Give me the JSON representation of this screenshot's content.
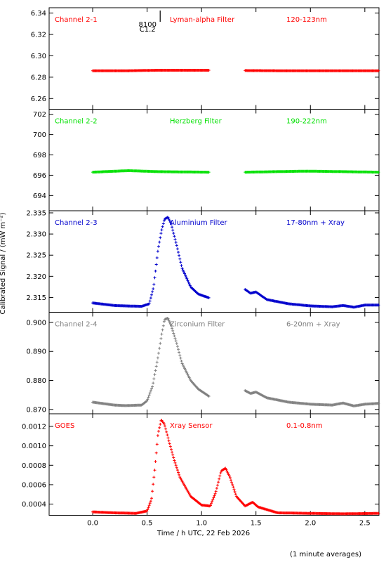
{
  "figure": {
    "xlabel": "Time / h UTC, 22 Feb 2026",
    "ylabel": "Calibrated Signal / (mW m⁻²)",
    "footnote": "(1 minute averages)",
    "flare_marker": {
      "x": 0.62,
      "label_top": "8100",
      "label_bottom": "C1.2"
    }
  },
  "chart_data": [
    {
      "type": "scatter",
      "label_left": "Channel 2-1",
      "label_mid": "Lyman-alpha Filter",
      "label_right": "120-123nm",
      "color": "#ff0000",
      "xlim": [
        -0.4,
        2.63
      ],
      "ylim": [
        6.25,
        6.345
      ],
      "yticks": [
        6.26,
        6.28,
        6.3,
        6.32,
        6.34
      ],
      "ytick_labels": [
        "6.26",
        "6.28",
        "6.30",
        "6.32",
        "6.34"
      ],
      "segments": [
        [
          0.0,
          1.07
        ],
        [
          1.4,
          2.63
        ]
      ],
      "points": [
        [
          0.0,
          6.286
        ],
        [
          0.3,
          6.286
        ],
        [
          0.6,
          6.2865
        ],
        [
          0.9,
          6.2865
        ],
        [
          1.07,
          6.2865
        ],
        [
          1.4,
          6.2862
        ],
        [
          1.8,
          6.286
        ],
        [
          2.2,
          6.286
        ],
        [
          2.63,
          6.286
        ]
      ]
    },
    {
      "type": "scatter",
      "label_left": "Channel 2-2",
      "label_mid": "Herzberg Filter",
      "label_right": "190-222nm",
      "color": "#00e000",
      "xlim": [
        -0.4,
        2.63
      ],
      "ylim": [
        692.5,
        702.5
      ],
      "yticks": [
        694,
        696,
        698,
        700,
        702
      ],
      "ytick_labels": [
        "694",
        "696",
        "698",
        "700",
        "702"
      ],
      "segments": [
        [
          0.0,
          1.07
        ],
        [
          1.4,
          2.63
        ]
      ],
      "points": [
        [
          0.0,
          696.3
        ],
        [
          0.33,
          696.45
        ],
        [
          0.6,
          696.35
        ],
        [
          1.07,
          696.3
        ],
        [
          1.4,
          696.3
        ],
        [
          1.97,
          696.4
        ],
        [
          2.63,
          696.3
        ]
      ]
    },
    {
      "type": "scatter",
      "label_left": "Channel 2-3",
      "label_mid": "Aluminium Filter",
      "label_right": "17-80nm + Xray",
      "color": "#0000cc",
      "xlim": [
        -0.4,
        2.63
      ],
      "ylim": [
        2.3115,
        2.3355
      ],
      "yticks": [
        2.315,
        2.32,
        2.325,
        2.33,
        2.335
      ],
      "ytick_labels": [
        "2.315",
        "2.320",
        "2.325",
        "2.330",
        "2.335"
      ],
      "segments": [
        [
          0.0,
          1.07
        ],
        [
          1.4,
          2.63
        ]
      ],
      "points": [
        [
          0.0,
          2.3137
        ],
        [
          0.1,
          2.3134
        ],
        [
          0.2,
          2.3131
        ],
        [
          0.3,
          2.313
        ],
        [
          0.45,
          2.3129
        ],
        [
          0.52,
          2.3135
        ],
        [
          0.56,
          2.3175
        ],
        [
          0.6,
          2.3262
        ],
        [
          0.63,
          2.3305
        ],
        [
          0.66,
          2.3335
        ],
        [
          0.69,
          2.334
        ],
        [
          0.72,
          2.3325
        ],
        [
          0.77,
          2.3275
        ],
        [
          0.82,
          2.322
        ],
        [
          0.9,
          2.3175
        ],
        [
          0.97,
          2.3158
        ],
        [
          1.07,
          2.3149
        ],
        [
          1.4,
          2.3169
        ],
        [
          1.45,
          2.316
        ],
        [
          1.5,
          2.3163
        ],
        [
          1.6,
          2.3145
        ],
        [
          1.8,
          2.3135
        ],
        [
          2.0,
          2.313
        ],
        [
          2.2,
          2.3128
        ],
        [
          2.3,
          2.3131
        ],
        [
          2.4,
          2.3127
        ],
        [
          2.5,
          2.3132
        ],
        [
          2.63,
          2.3132
        ]
      ]
    },
    {
      "type": "scatter",
      "label_left": "Channel 2-4",
      "label_mid": "Zirconium Filter",
      "label_right": "6-20nm + Xray",
      "color": "#808080",
      "xlim": [
        -0.4,
        2.63
      ],
      "ylim": [
        0.8685,
        0.9035
      ],
      "yticks": [
        0.87,
        0.88,
        0.89,
        0.9
      ],
      "ytick_labels": [
        "0.870",
        "0.880",
        "0.890",
        "0.900"
      ],
      "segments": [
        [
          0.0,
          1.07
        ],
        [
          1.4,
          2.63
        ]
      ],
      "points": [
        [
          0.0,
          0.8725
        ],
        [
          0.1,
          0.872
        ],
        [
          0.2,
          0.8715
        ],
        [
          0.3,
          0.8713
        ],
        [
          0.45,
          0.8715
        ],
        [
          0.5,
          0.873
        ],
        [
          0.55,
          0.878
        ],
        [
          0.6,
          0.888
        ],
        [
          0.63,
          0.895
        ],
        [
          0.66,
          0.901
        ],
        [
          0.69,
          0.9015
        ],
        [
          0.72,
          0.899
        ],
        [
          0.77,
          0.893
        ],
        [
          0.82,
          0.886
        ],
        [
          0.9,
          0.88
        ],
        [
          0.97,
          0.877
        ],
        [
          1.07,
          0.8745
        ],
        [
          1.4,
          0.8765
        ],
        [
          1.45,
          0.8755
        ],
        [
          1.5,
          0.876
        ],
        [
          1.6,
          0.874
        ],
        [
          1.8,
          0.8725
        ],
        [
          2.0,
          0.8718
        ],
        [
          2.2,
          0.8715
        ],
        [
          2.3,
          0.8722
        ],
        [
          2.4,
          0.8712
        ],
        [
          2.5,
          0.8718
        ],
        [
          2.63,
          0.8721
        ]
      ]
    },
    {
      "type": "scatter",
      "label_left": "GOES",
      "label_mid": "Xray Sensor",
      "label_right": "0.1-0.8nm",
      "color": "#ff0000",
      "xlim": [
        -0.4,
        2.63
      ],
      "ylim": [
        0.000285,
        0.00133
      ],
      "yticks": [
        0.0004,
        0.0006,
        0.0008,
        0.001,
        0.0012
      ],
      "ytick_labels": [
        "0.0004",
        "0.0006",
        "0.0008",
        "0.0010",
        "0.0012"
      ],
      "segments": [
        [
          0.0,
          2.63
        ]
      ],
      "points": [
        [
          0.0,
          0.00032
        ],
        [
          0.2,
          0.00031
        ],
        [
          0.4,
          0.000305
        ],
        [
          0.5,
          0.00033
        ],
        [
          0.54,
          0.00045
        ],
        [
          0.57,
          0.00075
        ],
        [
          0.6,
          0.00112
        ],
        [
          0.63,
          0.00127
        ],
        [
          0.66,
          0.00122
        ],
        [
          0.7,
          0.00105
        ],
        [
          0.75,
          0.00085
        ],
        [
          0.8,
          0.00068
        ],
        [
          0.9,
          0.00048
        ],
        [
          1.0,
          0.00039
        ],
        [
          1.08,
          0.00038
        ],
        [
          1.13,
          0.00052
        ],
        [
          1.18,
          0.00074
        ],
        [
          1.22,
          0.00077
        ],
        [
          1.26,
          0.00068
        ],
        [
          1.32,
          0.00048
        ],
        [
          1.4,
          0.00038
        ],
        [
          1.47,
          0.00042
        ],
        [
          1.52,
          0.00037
        ],
        [
          1.7,
          0.00031
        ],
        [
          2.0,
          0.000305
        ],
        [
          2.3,
          0.0003
        ],
        [
          2.63,
          0.000305
        ]
      ]
    }
  ],
  "xaxis": {
    "ticks": [
      0.0,
      0.5,
      1.0,
      1.5,
      2.0,
      2.5
    ],
    "tick_labels": [
      "0.0",
      "0.5",
      "1.0",
      "1.5",
      "2.0",
      "2.5"
    ]
  }
}
